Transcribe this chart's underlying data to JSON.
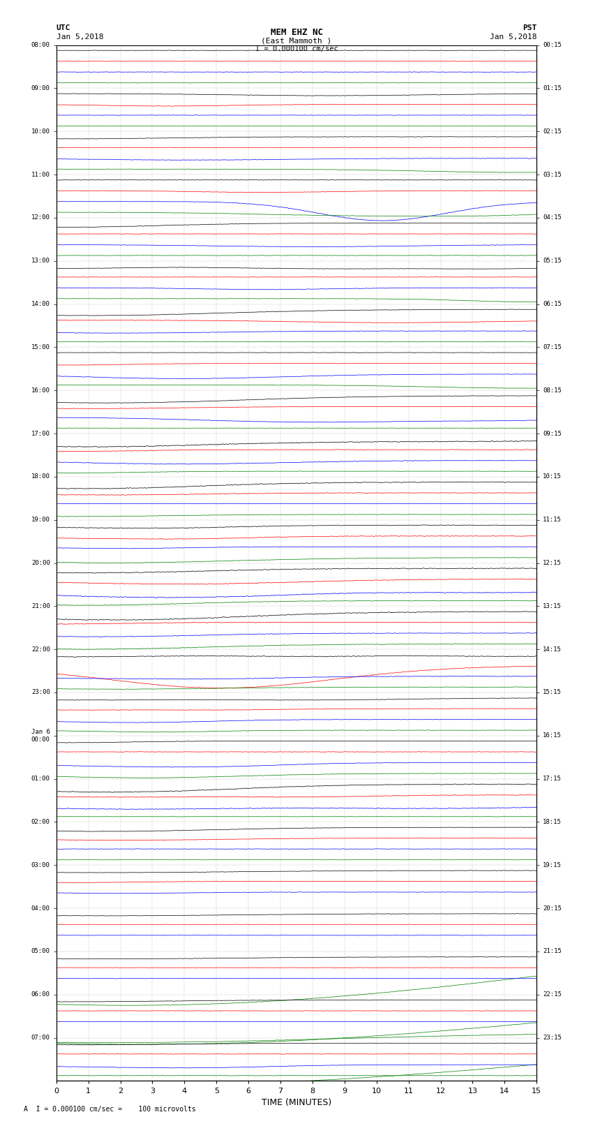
{
  "title_line1": "MEM EHZ NC",
  "title_line2": "(East Mammoth )",
  "scale_label": "I = 0.000100 cm/sec",
  "left_header": "UTC",
  "left_date": "Jan 5,2018",
  "right_header": "PST",
  "right_date": "Jan 5,2018",
  "bottom_label": "A  I = 0.000100 cm/sec =    100 microvolts",
  "xlabel": "TIME (MINUTES)",
  "bg_color": "white",
  "trace_linewidth": 0.5,
  "colors": [
    "black",
    "red",
    "blue",
    "green"
  ],
  "n_rows": 96,
  "samples": 1800,
  "utc_labels": {
    "0": "08:00",
    "4": "09:00",
    "8": "10:00",
    "12": "11:00",
    "16": "12:00",
    "20": "13:00",
    "24": "14:00",
    "28": "15:00",
    "32": "16:00",
    "36": "17:00",
    "40": "18:00",
    "44": "19:00",
    "48": "20:00",
    "52": "21:00",
    "56": "22:00",
    "60": "23:00",
    "64": "Jan 6\n00:00",
    "68": "01:00",
    "72": "02:00",
    "76": "03:00",
    "80": "04:00",
    "84": "05:00",
    "88": "06:00",
    "92": "07:00"
  },
  "pst_labels": {
    "0": "00:15",
    "4": "01:15",
    "8": "02:15",
    "12": "03:15",
    "16": "04:15",
    "20": "05:15",
    "24": "06:15",
    "28": "07:15",
    "32": "08:15",
    "36": "09:15",
    "40": "10:15",
    "44": "11:15",
    "48": "12:15",
    "52": "13:15",
    "56": "14:15",
    "60": "15:15",
    "64": "16:15",
    "68": "17:15",
    "72": "18:15",
    "76": "19:15",
    "80": "20:15",
    "84": "21:15",
    "88": "22:15",
    "92": "23:15"
  }
}
